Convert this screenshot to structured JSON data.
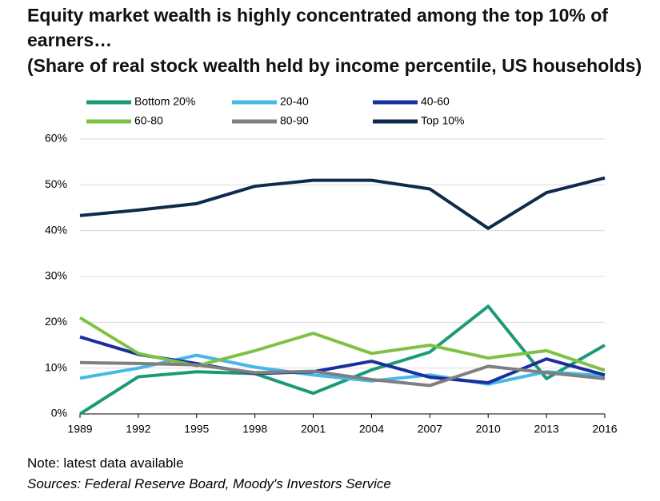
{
  "chart_data": {
    "type": "line",
    "title": "Equity market wealth is highly concentrated among the top 10% of earners…",
    "subtitle": "(Share of real stock wealth held by income percentile, US households)",
    "note": "Note: latest data available",
    "source": "Sources: Federal Reserve Board, Moody's Investors Service",
    "categories": [
      "1989",
      "1992",
      "1995",
      "1998",
      "2001",
      "2004",
      "2007",
      "2010",
      "2013",
      "2016"
    ],
    "series": [
      {
        "name": "Bottom 20%",
        "color": "#1b9a78",
        "values": [
          0,
          8.1,
          9.2,
          8.8,
          4.5,
          9.6,
          13.5,
          23.5,
          7.7,
          15
        ]
      },
      {
        "name": "20-40",
        "color": "#45b8e6",
        "values": [
          7.8,
          10,
          12.8,
          10.2,
          8.5,
          7.2,
          8.5,
          6.5,
          9.2,
          8.3
        ]
      },
      {
        "name": "40-60",
        "color": "#1a2e9c",
        "values": [
          16.8,
          13,
          11,
          8.8,
          9.2,
          11.5,
          8,
          6.8,
          12,
          8.5
        ]
      },
      {
        "name": "60-80",
        "color": "#7dc242",
        "values": [
          21,
          13.2,
          10.5,
          13.8,
          17.6,
          13.2,
          15,
          12.2,
          13.8,
          9.5
        ]
      },
      {
        "name": "80-90",
        "color": "#7f7f7f",
        "values": [
          11.2,
          11,
          10.7,
          9,
          9.3,
          7.5,
          6.2,
          10.4,
          9,
          7.7
        ]
      },
      {
        "name": "Top 10%",
        "color": "#0f2b4c",
        "values": [
          43.3,
          44.5,
          45.9,
          49.7,
          51,
          51,
          49.1,
          40.5,
          48.3,
          51.5
        ]
      }
    ],
    "ylim": [
      0,
      60
    ],
    "yticks": [
      {
        "value": 0,
        "label": "0%"
      },
      {
        "value": 10,
        "label": "10%"
      },
      {
        "value": 20,
        "label": "20%"
      },
      {
        "value": 30,
        "label": "30%"
      },
      {
        "value": 40,
        "label": "40%"
      },
      {
        "value": 50,
        "label": "50%"
      },
      {
        "value": 60,
        "label": "60%"
      }
    ],
    "grid": true
  }
}
